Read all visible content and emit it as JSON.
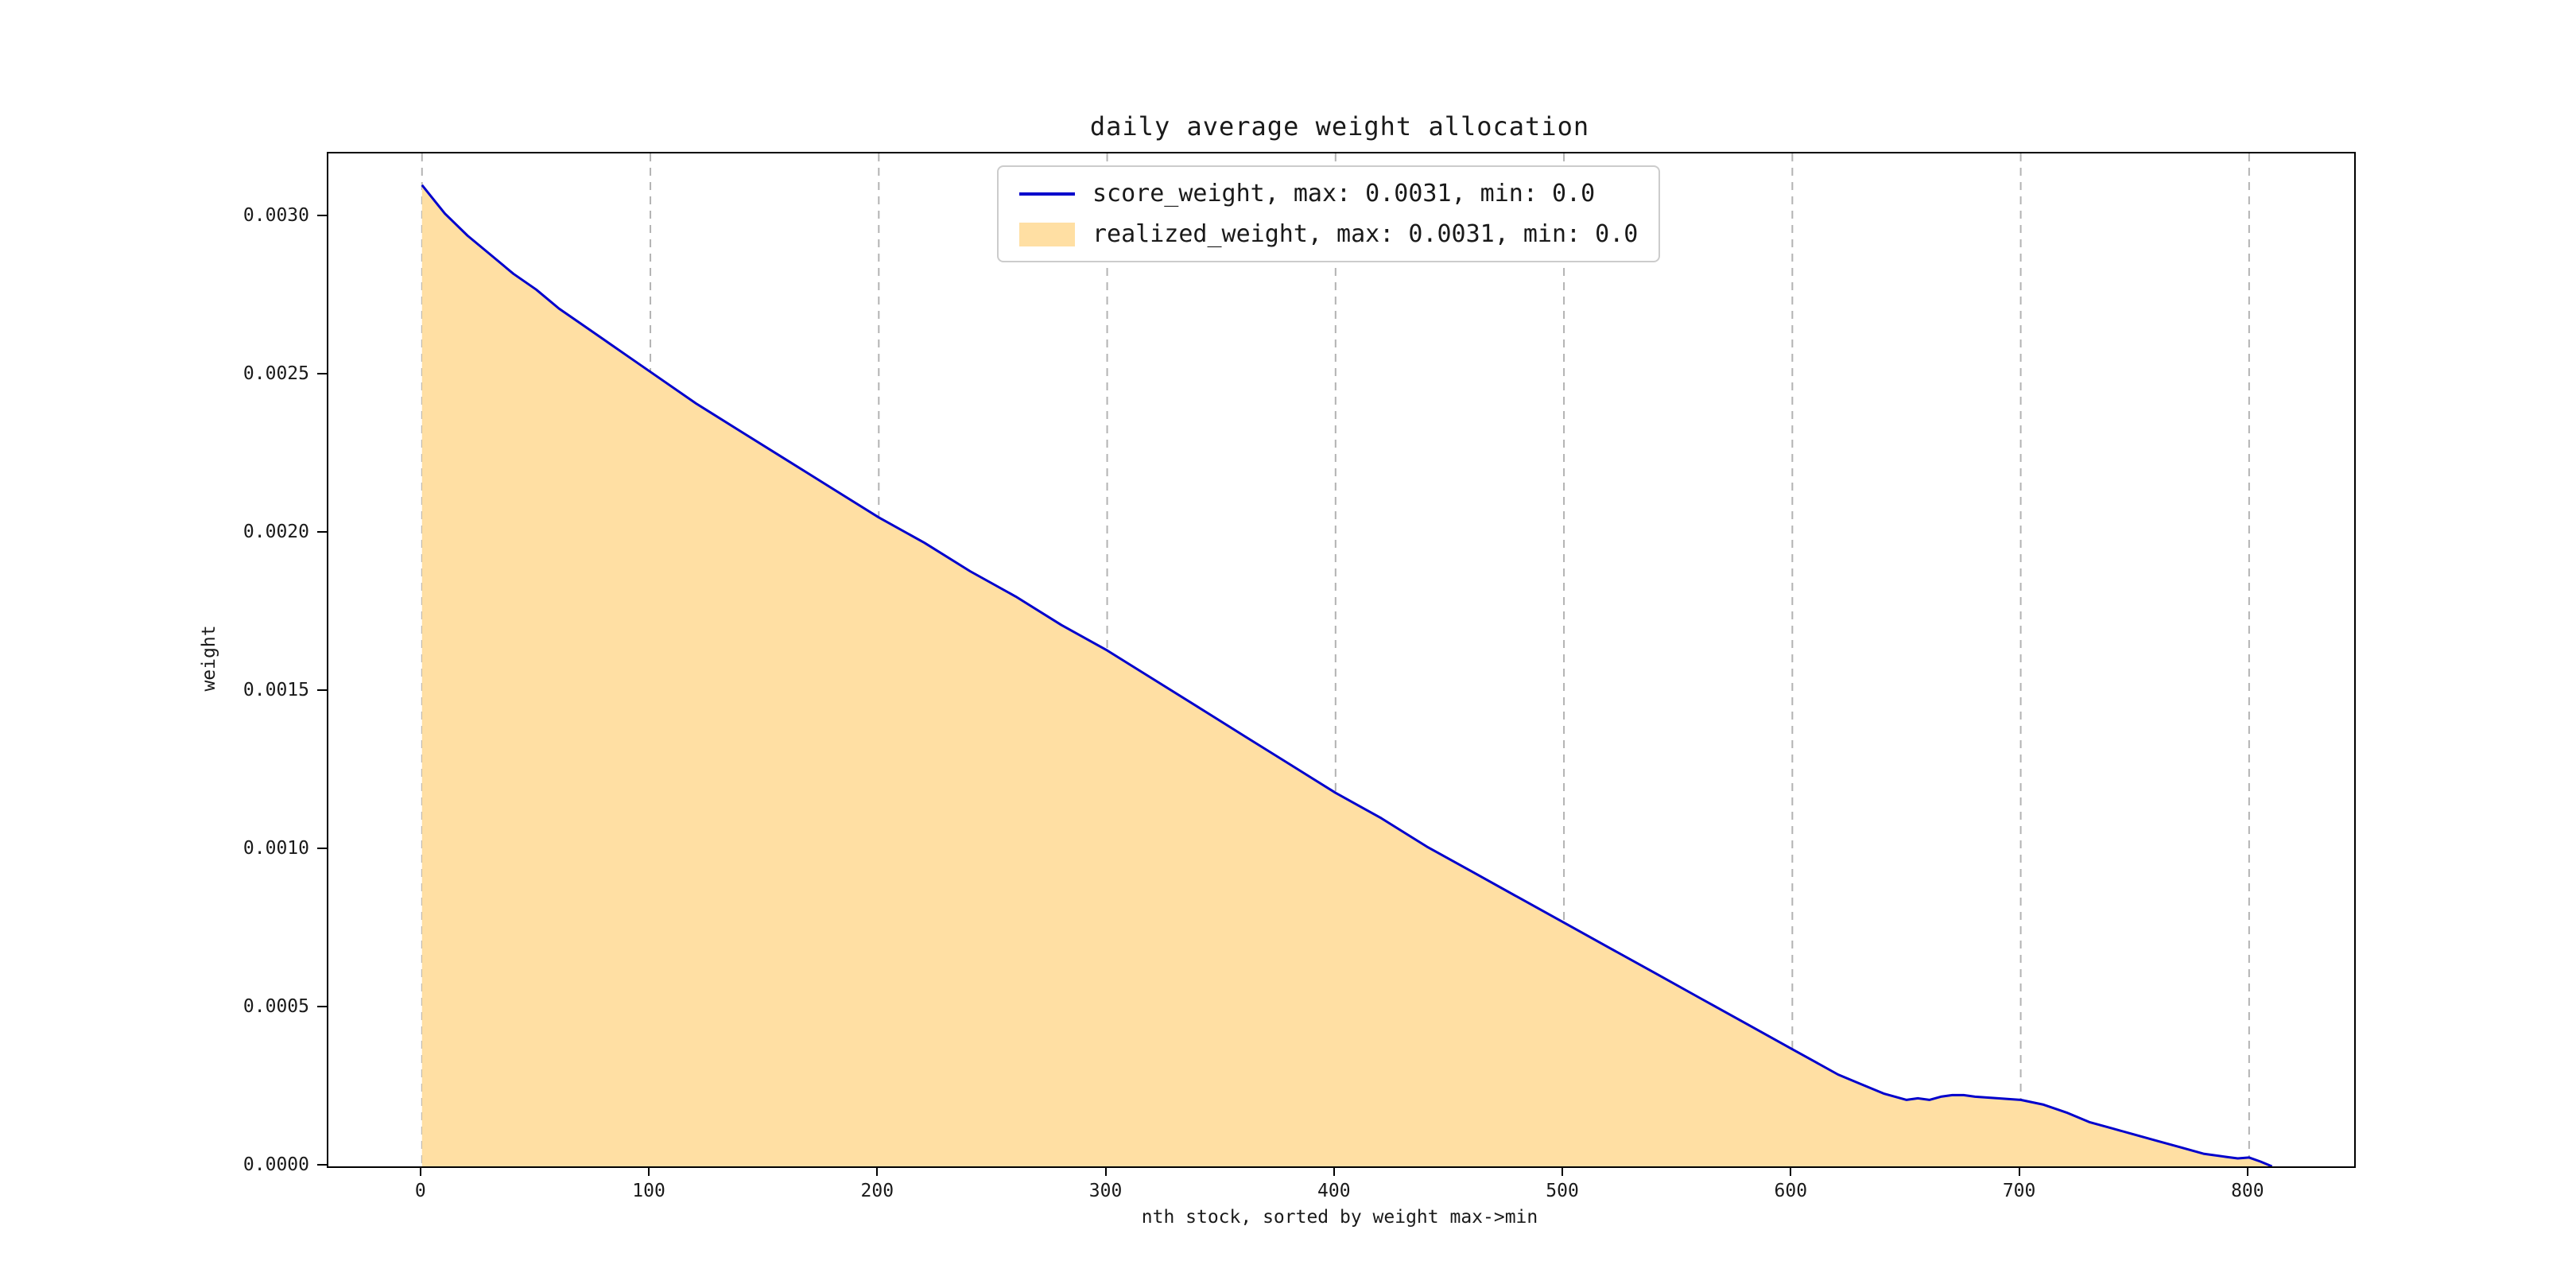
{
  "figure": {
    "title": "daily average weight allocation",
    "xlabel": "nth stock, sorted by weight max->min",
    "ylabel": "weight"
  },
  "legend": {
    "items": [
      {
        "label": "score_weight, max: 0.0031, min: 0.0",
        "swatch": "line",
        "color": "#0000cc"
      },
      {
        "label": "realized_weight, max: 0.0031, min: 0.0",
        "swatch": "patch",
        "color": "#ffdfa3"
      }
    ]
  },
  "chart_data": {
    "type": "area",
    "title": "daily average weight allocation",
    "xlabel": "nth stock, sorted by weight max->min",
    "ylabel": "weight",
    "xlim": [
      -41,
      846
    ],
    "ylim": [
      0,
      0.0032
    ],
    "x_ticks": [
      0,
      100,
      200,
      300,
      400,
      500,
      600,
      700,
      800
    ],
    "y_ticks": [
      0.0,
      0.0005,
      0.001,
      0.0015,
      0.002,
      0.0025,
      0.003
    ],
    "y_tick_labels": [
      "0.0000",
      "0.0005",
      "0.0010",
      "0.0015",
      "0.0020",
      "0.0025",
      "0.0030"
    ],
    "grid": "vertical-dashed",
    "grid_color": "#b3b3b3",
    "legend_position": "upper center",
    "series": [
      {
        "name": "score_weight",
        "style": "line",
        "color": "#0000cc",
        "max": 0.0031,
        "min": 0.0,
        "uses": "points"
      },
      {
        "name": "realized_weight",
        "style": "area",
        "color": "#ffdfa3",
        "max": 0.0031,
        "min": 0.0,
        "uses": "points"
      }
    ],
    "points": [
      [
        0,
        0.0031
      ],
      [
        10,
        0.00301
      ],
      [
        20,
        0.00294
      ],
      [
        30,
        0.00288
      ],
      [
        40,
        0.00282
      ],
      [
        50,
        0.00277
      ],
      [
        60,
        0.00271
      ],
      [
        70,
        0.00266
      ],
      [
        80,
        0.00261
      ],
      [
        90,
        0.00256
      ],
      [
        100,
        0.00251
      ],
      [
        120,
        0.00241
      ],
      [
        140,
        0.00232
      ],
      [
        160,
        0.00223
      ],
      [
        180,
        0.00214
      ],
      [
        200,
        0.00205
      ],
      [
        220,
        0.00197
      ],
      [
        240,
        0.00188
      ],
      [
        260,
        0.0018
      ],
      [
        280,
        0.00171
      ],
      [
        300,
        0.00163
      ],
      [
        320,
        0.00154
      ],
      [
        340,
        0.00145
      ],
      [
        360,
        0.00136
      ],
      [
        380,
        0.00127
      ],
      [
        400,
        0.00118
      ],
      [
        420,
        0.0011
      ],
      [
        440,
        0.00101
      ],
      [
        460,
        0.00093
      ],
      [
        480,
        0.00085
      ],
      [
        500,
        0.00077
      ],
      [
        520,
        0.00069
      ],
      [
        540,
        0.00061
      ],
      [
        560,
        0.00053
      ],
      [
        580,
        0.00045
      ],
      [
        600,
        0.00037
      ],
      [
        610,
        0.00033
      ],
      [
        620,
        0.00029
      ],
      [
        630,
        0.00026
      ],
      [
        640,
        0.00023
      ],
      [
        650,
        0.00021
      ],
      [
        655,
        0.000215
      ],
      [
        660,
        0.00021
      ],
      [
        665,
        0.00022
      ],
      [
        670,
        0.000225
      ],
      [
        675,
        0.000225
      ],
      [
        680,
        0.00022
      ],
      [
        690,
        0.000215
      ],
      [
        700,
        0.00021
      ],
      [
        710,
        0.000195
      ],
      [
        720,
        0.00017
      ],
      [
        730,
        0.00014
      ],
      [
        740,
        0.00012
      ],
      [
        750,
        0.0001
      ],
      [
        760,
        8e-05
      ],
      [
        770,
        6e-05
      ],
      [
        780,
        4e-05
      ],
      [
        790,
        3e-05
      ],
      [
        795,
        2.5e-05
      ],
      [
        800,
        2.8e-05
      ],
      [
        805,
        1.5e-05
      ],
      [
        810,
        0.0
      ]
    ]
  }
}
